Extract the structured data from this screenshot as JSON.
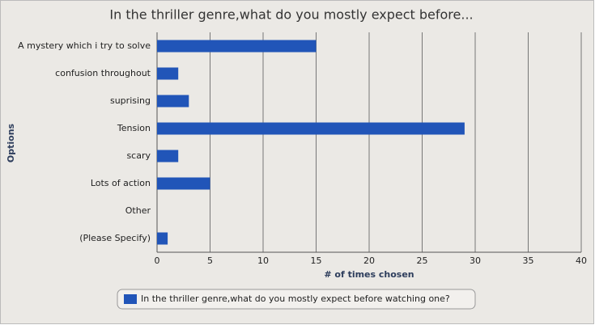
{
  "chart_data": {
    "type": "hbar",
    "title": "In the thriller genre,what do you mostly expect before...",
    "x_label": "# of times chosen",
    "y_label": "Options",
    "categories": [
      "A mystery which i try to solve",
      "confusion throughout",
      "suprising",
      "Tension",
      "scary",
      "Lots of action",
      "Other",
      "(Please Specify)"
    ],
    "series": [
      {
        "name": "In the thriller genre,what do you mostly expect before watching one?",
        "color": "#2155b8",
        "values": [
          15,
          2,
          3,
          29,
          2,
          5,
          0,
          1
        ]
      }
    ],
    "xlim": [
      0,
      40
    ],
    "xticks": [
      0,
      5,
      10,
      15,
      20,
      25,
      30,
      35,
      40
    ],
    "grid": true
  }
}
